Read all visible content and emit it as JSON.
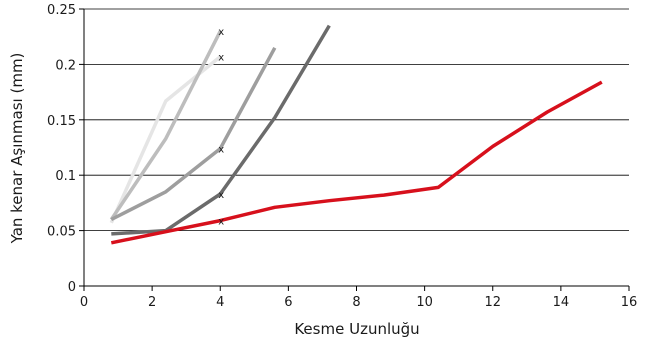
{
  "chart_data": {
    "type": "line",
    "title": "",
    "xlabel": "Kesme Uzunluğu",
    "ylabel": "Yan kenar Aşınması (mm)",
    "xlim": [
      0,
      16
    ],
    "ylim": [
      0,
      0.25
    ],
    "x_ticks": [
      0,
      2,
      4,
      6,
      8,
      10,
      12,
      14,
      16
    ],
    "y_ticks": [
      0,
      0.05,
      0.1,
      0.15,
      0.2,
      0.25
    ],
    "x_tick_labels": [
      "0",
      "2",
      "4",
      "6",
      "8",
      "10",
      "12",
      "14",
      "16"
    ],
    "y_tick_labels": [
      "0",
      "0.05",
      "0.1",
      "0.15",
      "0.2",
      "0.25"
    ],
    "grid": "horizontal",
    "legend": "none",
    "series": [
      {
        "color": "#e5e5e5",
        "points": [
          [
            0.8,
            0.057
          ],
          [
            2.4,
            0.167
          ],
          [
            4.0,
            0.207
          ]
        ],
        "end_marker": "x"
      },
      {
        "color": "#bdbdbd",
        "points": [
          [
            0.8,
            0.06
          ],
          [
            2.4,
            0.133
          ],
          [
            4.0,
            0.23
          ]
        ],
        "end_marker": "x"
      },
      {
        "color": "#9e9e9e",
        "points": [
          [
            0.8,
            0.06
          ],
          [
            2.4,
            0.085
          ],
          [
            4.0,
            0.124
          ],
          [
            5.6,
            0.215
          ]
        ],
        "end_marker": "x_at_4"
      },
      {
        "color": "#6b6b6b",
        "points": [
          [
            0.8,
            0.047
          ],
          [
            2.4,
            0.05
          ],
          [
            4.0,
            0.083
          ],
          [
            5.6,
            0.152
          ],
          [
            7.2,
            0.235
          ]
        ],
        "end_marker": "x_at_4"
      },
      {
        "color": "#d7101c",
        "points": [
          [
            0.8,
            0.039
          ],
          [
            2.4,
            0.049
          ],
          [
            4.0,
            0.059
          ],
          [
            5.6,
            0.071
          ],
          [
            7.2,
            0.077
          ],
          [
            8.8,
            0.082
          ],
          [
            10.4,
            0.089
          ],
          [
            12.0,
            0.126
          ],
          [
            13.6,
            0.157
          ],
          [
            15.2,
            0.184
          ]
        ],
        "end_marker": "x_at_4"
      }
    ],
    "markers": [
      {
        "x": 4.0,
        "y": 0.23,
        "symbol": "x"
      },
      {
        "x": 4.0,
        "y": 0.207,
        "symbol": "x"
      },
      {
        "x": 4.0,
        "y": 0.124,
        "symbol": "x"
      },
      {
        "x": 4.0,
        "y": 0.083,
        "symbol": "x"
      },
      {
        "x": 4.0,
        "y": 0.059,
        "symbol": "x"
      }
    ]
  }
}
